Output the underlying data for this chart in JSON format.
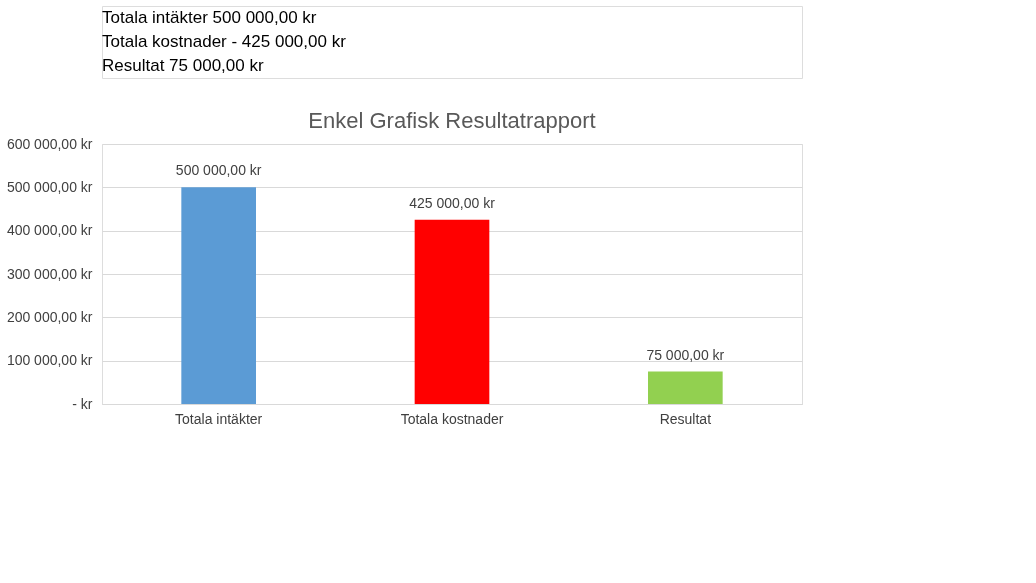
{
  "chart_data": {
    "type": "bar",
    "title": "Enkel Grafisk Resultatrapport",
    "categories": [
      "Totala intäkter",
      "Totala kostnader",
      "Resultat"
    ],
    "values": [
      500000,
      425000,
      75000
    ],
    "colors": [
      "#5b9bd5",
      "#ff0000",
      "#92d050"
    ],
    "value_labels": [
      "500 000,00 kr",
      "425 000,00 kr",
      "75 000,00 kr"
    ],
    "ylim": [
      0,
      600000
    ],
    "yticks": [
      {
        "value": 0,
        "label": "-   kr"
      },
      {
        "value": 100000,
        "label": "100 000,00 kr"
      },
      {
        "value": 200000,
        "label": "200 000,00 kr"
      },
      {
        "value": 300000,
        "label": "300 000,00 kr"
      },
      {
        "value": 400000,
        "label": "400 000,00 kr"
      },
      {
        "value": 500000,
        "label": "500 000,00 kr"
      },
      {
        "value": 600000,
        "label": "600 000,00 kr"
      }
    ],
    "grid": "y",
    "annotations": [
      "Totala intäkter  500 000,00 kr",
      "Totala kostnader  - 425 000,00 kr",
      "Resultat  75 000,00 kr"
    ]
  }
}
